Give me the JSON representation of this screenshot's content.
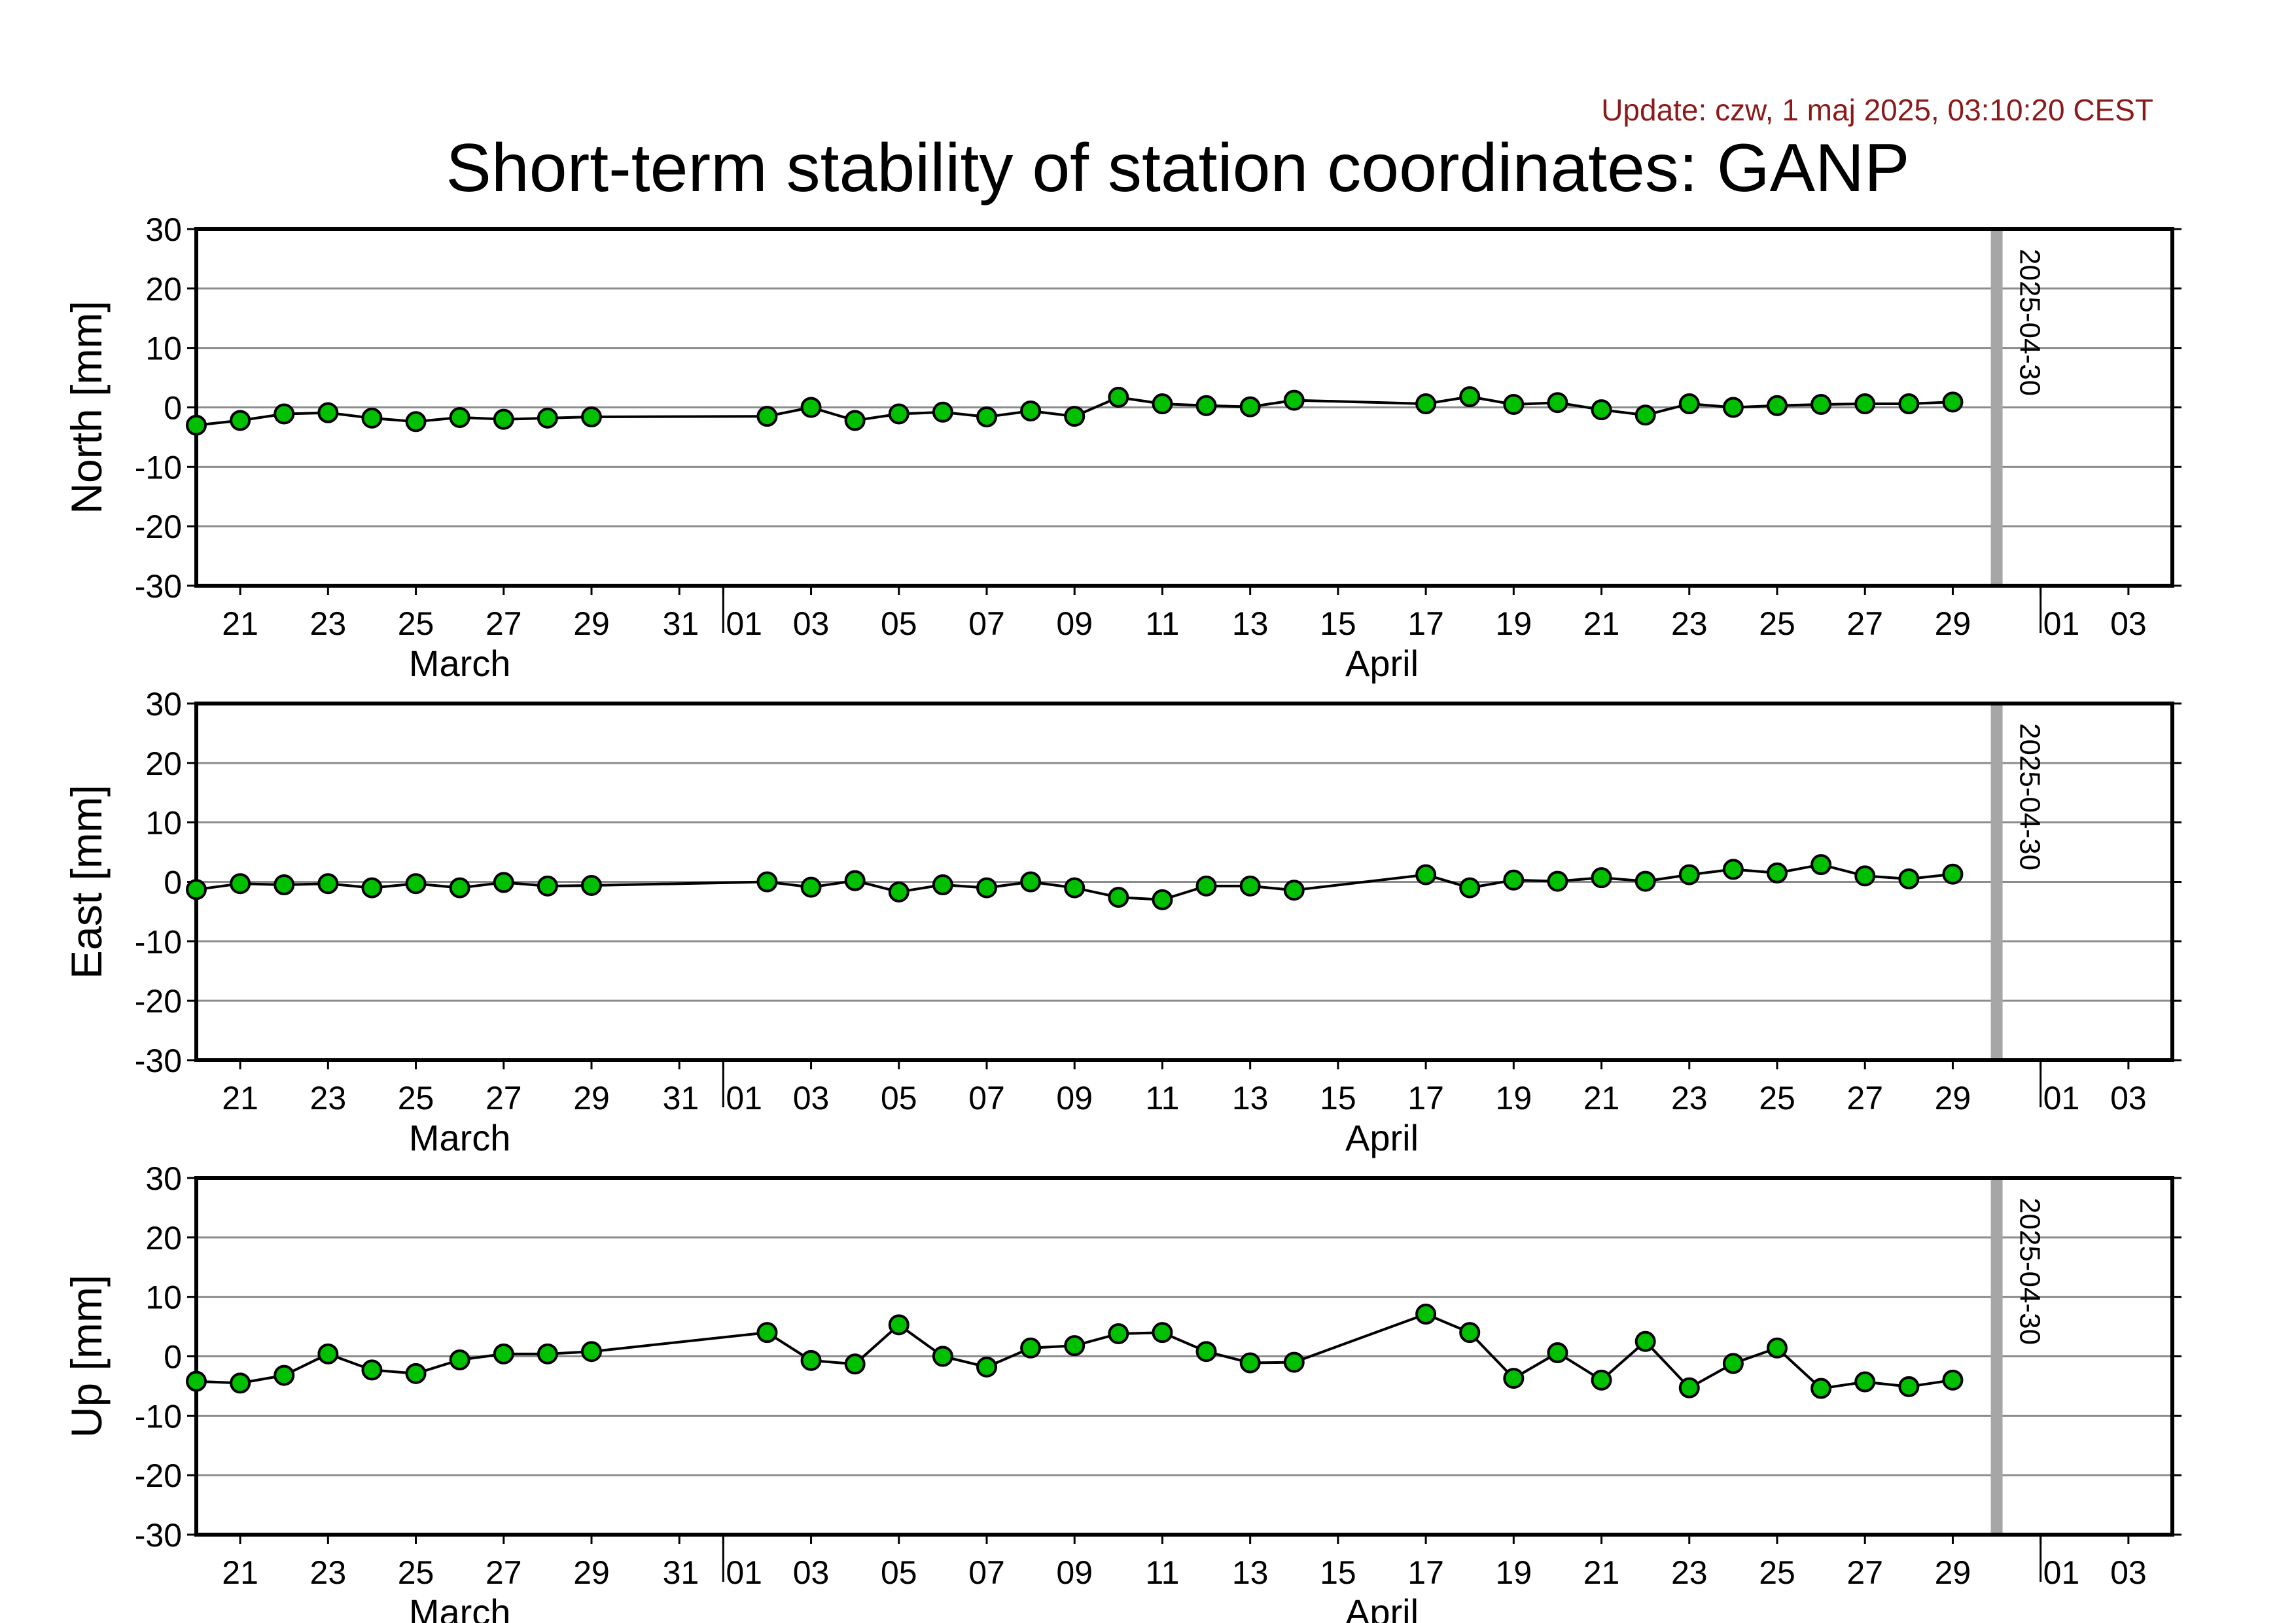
{
  "header": {
    "update": "Update: czw, 1 maj 2025, 03:10:20 CEST",
    "title": "Short-term stability of station coordinates: GANP"
  },
  "chart_data": {
    "type": "line",
    "station": "GANP",
    "x_axis": {
      "range": [
        "2025-03-20",
        "2025-05-04"
      ],
      "tick_labels": [
        "21",
        "23",
        "25",
        "27",
        "29",
        "31",
        "01",
        "03",
        "05",
        "07",
        "09",
        "11",
        "13",
        "15",
        "17",
        "19",
        "21",
        "23",
        "25",
        "27",
        "29",
        "01",
        "03"
      ],
      "tick_dates": [
        "2025-03-21",
        "2025-03-23",
        "2025-03-25",
        "2025-03-27",
        "2025-03-29",
        "2025-03-31",
        "2025-04-01",
        "2025-04-03",
        "2025-04-05",
        "2025-04-07",
        "2025-04-09",
        "2025-04-11",
        "2025-04-13",
        "2025-04-15",
        "2025-04-17",
        "2025-04-19",
        "2025-04-21",
        "2025-04-23",
        "2025-04-25",
        "2025-04-27",
        "2025-04-29",
        "2025-05-01",
        "2025-05-03"
      ],
      "months": [
        {
          "label": "March",
          "date": "2025-03-26"
        },
        {
          "label": "April",
          "date": "2025-04-16"
        }
      ],
      "month_boundaries": [
        "2025-04-01",
        "2025-05-01"
      ]
    },
    "marker": {
      "date": "2025-04-30",
      "label": "2025-04-30",
      "color": "#a6a6a6"
    },
    "point_color": "#00c000",
    "line_color": "#000000",
    "panels": [
      {
        "ylabel": "North [mm]",
        "ylim": [
          -30,
          30
        ],
        "yticks": [
          30,
          20,
          10,
          0,
          -10,
          -20,
          -30
        ],
        "grid": true,
        "x": [
          "2025-03-20",
          "2025-03-21",
          "2025-03-22",
          "2025-03-23",
          "2025-03-24",
          "2025-03-25",
          "2025-03-26",
          "2025-03-27",
          "2025-03-28",
          "2025-03-29",
          "2025-04-02",
          "2025-04-03",
          "2025-04-04",
          "2025-04-05",
          "2025-04-06",
          "2025-04-07",
          "2025-04-08",
          "2025-04-09",
          "2025-04-10",
          "2025-04-11",
          "2025-04-12",
          "2025-04-13",
          "2025-04-14",
          "2025-04-17",
          "2025-04-18",
          "2025-04-19",
          "2025-04-20",
          "2025-04-21",
          "2025-04-22",
          "2025-04-23",
          "2025-04-24",
          "2025-04-25",
          "2025-04-26",
          "2025-04-27",
          "2025-04-28",
          "2025-04-29"
        ],
        "y": [
          -3.0,
          -2.2,
          -1.1,
          -0.9,
          -1.8,
          -2.4,
          -1.7,
          -2.0,
          -1.8,
          -1.6,
          -1.5,
          0.0,
          -2.2,
          -1.1,
          -0.8,
          -1.6,
          -0.6,
          -1.5,
          1.7,
          0.6,
          0.3,
          0.1,
          1.2,
          0.6,
          1.8,
          0.5,
          0.8,
          -0.4,
          -1.3,
          0.6,
          0.0,
          0.3,
          0.5,
          0.6,
          0.6,
          0.9
        ]
      },
      {
        "ylabel": "East [mm]",
        "ylim": [
          -30,
          30
        ],
        "yticks": [
          30,
          20,
          10,
          0,
          -10,
          -20,
          -30
        ],
        "grid": true,
        "x": [
          "2025-03-20",
          "2025-03-21",
          "2025-03-22",
          "2025-03-23",
          "2025-03-24",
          "2025-03-25",
          "2025-03-26",
          "2025-03-27",
          "2025-03-28",
          "2025-03-29",
          "2025-04-02",
          "2025-04-03",
          "2025-04-04",
          "2025-04-05",
          "2025-04-06",
          "2025-04-07",
          "2025-04-08",
          "2025-04-09",
          "2025-04-10",
          "2025-04-11",
          "2025-04-12",
          "2025-04-13",
          "2025-04-14",
          "2025-04-17",
          "2025-04-18",
          "2025-04-19",
          "2025-04-20",
          "2025-04-21",
          "2025-04-22",
          "2025-04-23",
          "2025-04-24",
          "2025-04-25",
          "2025-04-26",
          "2025-04-27",
          "2025-04-28",
          "2025-04-29"
        ],
        "y": [
          -1.3,
          -0.3,
          -0.5,
          -0.3,
          -1.0,
          -0.3,
          -1.0,
          -0.1,
          -0.7,
          -0.6,
          0.0,
          -0.9,
          0.2,
          -1.7,
          -0.5,
          -1.0,
          0.0,
          -1.0,
          -2.6,
          -3.0,
          -0.7,
          -0.7,
          -1.4,
          1.2,
          -1.0,
          0.3,
          0.1,
          0.7,
          0.1,
          1.2,
          2.1,
          1.5,
          2.9,
          1.0,
          0.5,
          1.3
        ]
      },
      {
        "ylabel": "Up [mm]",
        "ylim": [
          -30,
          30
        ],
        "yticks": [
          30,
          20,
          10,
          0,
          -10,
          -20,
          -30
        ],
        "grid": true,
        "x": [
          "2025-03-20",
          "2025-03-21",
          "2025-03-22",
          "2025-03-23",
          "2025-03-24",
          "2025-03-25",
          "2025-03-26",
          "2025-03-27",
          "2025-03-28",
          "2025-03-29",
          "2025-04-02",
          "2025-04-03",
          "2025-04-04",
          "2025-04-05",
          "2025-04-06",
          "2025-04-07",
          "2025-04-08",
          "2025-04-09",
          "2025-04-10",
          "2025-04-11",
          "2025-04-12",
          "2025-04-13",
          "2025-04-14",
          "2025-04-17",
          "2025-04-18",
          "2025-04-19",
          "2025-04-20",
          "2025-04-21",
          "2025-04-22",
          "2025-04-23",
          "2025-04-24",
          "2025-04-25",
          "2025-04-26",
          "2025-04-27",
          "2025-04-28",
          "2025-04-29"
        ],
        "y": [
          -4.2,
          -4.5,
          -3.2,
          0.4,
          -2.3,
          -2.9,
          -0.6,
          0.4,
          0.4,
          0.8,
          4.0,
          -0.7,
          -1.3,
          5.3,
          0.0,
          -1.8,
          1.4,
          1.8,
          3.8,
          4.0,
          0.8,
          -1.1,
          -1.0,
          7.1,
          4.0,
          -3.7,
          0.6,
          -4.0,
          2.5,
          -5.3,
          -1.2,
          1.4,
          -5.4,
          -4.3,
          -5.1,
          -4.0
        ]
      }
    ]
  }
}
